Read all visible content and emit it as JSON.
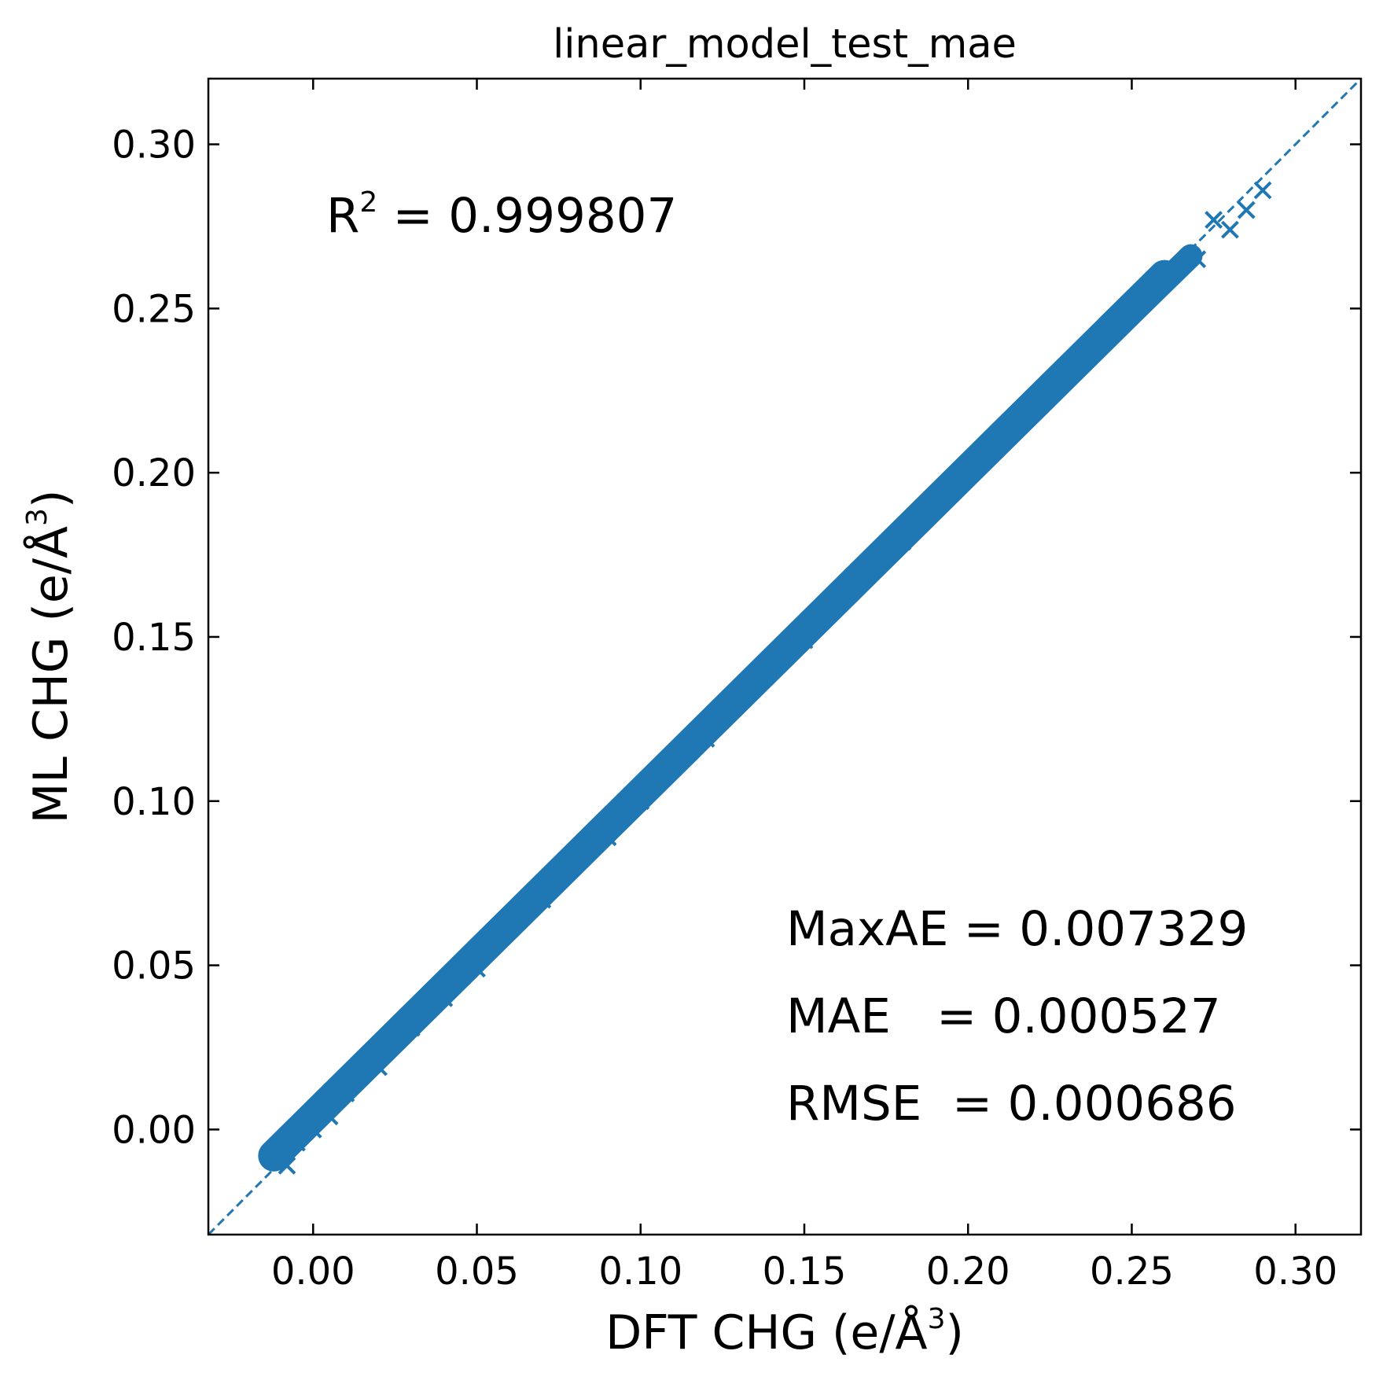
{
  "chart_data": {
    "type": "scatter",
    "title": "linear_model_test_mae",
    "xlabel": {
      "base": "DFT CHG (e/Å",
      "sup": "3",
      "tail": ")"
    },
    "ylabel": {
      "base": "ML CHG (e/Å",
      "sup": "3",
      "tail": ")"
    },
    "xlim": [
      -0.032,
      0.32
    ],
    "ylim": [
      -0.032,
      0.32
    ],
    "xticks": [
      0.0,
      0.05,
      0.1,
      0.15,
      0.2,
      0.25,
      0.3
    ],
    "yticks": [
      0.0,
      0.05,
      0.1,
      0.15,
      0.2,
      0.25,
      0.3
    ],
    "xtick_labels": [
      "0.00",
      "0.05",
      "0.10",
      "0.15",
      "0.20",
      "0.25",
      "0.30"
    ],
    "ytick_labels": [
      "0.00",
      "0.05",
      "0.10",
      "0.15",
      "0.20",
      "0.25",
      "0.30"
    ],
    "marker": "x",
    "marker_color": "#1f77b4",
    "reference_line": {
      "style": "dashed",
      "color": "#1f77b4",
      "slope": 1,
      "intercept": 0
    },
    "grid": false,
    "series": [
      {
        "x": [
          -0.012,
          -0.008,
          -0.005,
          0.0,
          0.005,
          0.01,
          0.02,
          0.03,
          0.04,
          0.05,
          0.06,
          0.07,
          0.08,
          0.09,
          0.1,
          0.11,
          0.12,
          0.13,
          0.14,
          0.15,
          0.16,
          0.17,
          0.18,
          0.19,
          0.2,
          0.21,
          0.22,
          0.23,
          0.24,
          0.25,
          0.26,
          0.27,
          0.275,
          0.28,
          0.285,
          0.29
        ],
        "y": [
          -0.008,
          -0.011,
          -0.004,
          0.0,
          0.004,
          0.011,
          0.019,
          0.031,
          0.04,
          0.049,
          0.061,
          0.07,
          0.081,
          0.089,
          0.1,
          0.111,
          0.119,
          0.13,
          0.141,
          0.149,
          0.16,
          0.171,
          0.179,
          0.19,
          0.201,
          0.209,
          0.22,
          0.229,
          0.241,
          0.249,
          0.26,
          0.265,
          0.277,
          0.274,
          0.28,
          0.286
        ]
      }
    ],
    "annotations": {
      "r2": {
        "base": "R",
        "sup": "2",
        "value": " = 0.999807"
      },
      "maxae": "MaxAE = 0.007329",
      "mae": "MAE   = 0.000527",
      "rmse": "RMSE  = 0.000686"
    }
  }
}
